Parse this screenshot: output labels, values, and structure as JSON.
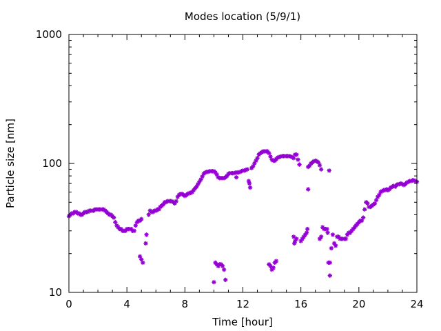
{
  "chart_data": {
    "type": "scatter",
    "title": "Modes location (5/9/1)",
    "xlabel": "Time [hour]",
    "ylabel": "Particle size [nm]",
    "xlim": [
      0,
      24
    ],
    "ylim": [
      10,
      1000
    ],
    "yscale": "log",
    "grid": false,
    "legend": "none",
    "marker": "asterisk",
    "xticks": [
      0,
      4,
      8,
      12,
      16,
      20,
      24
    ],
    "xtick_labels": [
      "0",
      "4",
      "8",
      "12",
      "16",
      "20",
      "24"
    ],
    "yticks": [
      10,
      100,
      1000
    ],
    "ytick_labels": [
      "10",
      "100",
      "1000"
    ],
    "series": [
      {
        "color": "#9400d3",
        "points": [
          [
            0.0,
            39
          ],
          [
            0.1,
            40
          ],
          [
            0.2,
            41
          ],
          [
            0.3,
            41
          ],
          [
            0.4,
            42
          ],
          [
            0.5,
            42
          ],
          [
            0.6,
            41
          ],
          [
            0.7,
            41
          ],
          [
            0.8,
            40
          ],
          [
            0.9,
            40
          ],
          [
            1.0,
            41
          ],
          [
            1.1,
            42
          ],
          [
            1.2,
            42
          ],
          [
            1.3,
            42
          ],
          [
            1.4,
            43
          ],
          [
            1.5,
            43
          ],
          [
            1.6,
            43
          ],
          [
            1.7,
            43
          ],
          [
            1.8,
            44
          ],
          [
            1.9,
            44
          ],
          [
            2.0,
            44
          ],
          [
            2.1,
            44
          ],
          [
            2.2,
            44
          ],
          [
            2.3,
            44
          ],
          [
            2.4,
            44
          ],
          [
            2.5,
            43
          ],
          [
            2.6,
            42
          ],
          [
            2.7,
            41
          ],
          [
            2.8,
            40
          ],
          [
            2.9,
            40
          ],
          [
            3.0,
            39
          ],
          [
            3.1,
            38
          ],
          [
            3.2,
            35
          ],
          [
            3.3,
            33
          ],
          [
            3.4,
            32
          ],
          [
            3.5,
            31
          ],
          [
            3.6,
            31
          ],
          [
            3.7,
            30
          ],
          [
            3.8,
            30
          ],
          [
            3.9,
            30
          ],
          [
            4.0,
            31
          ],
          [
            4.1,
            31
          ],
          [
            4.2,
            31
          ],
          [
            4.3,
            31
          ],
          [
            4.4,
            30
          ],
          [
            4.5,
            30
          ],
          [
            4.6,
            33
          ],
          [
            4.7,
            35
          ],
          [
            4.8,
            36
          ],
          [
            4.9,
            36
          ],
          [
            5.0,
            37
          ],
          [
            4.9,
            19
          ],
          [
            5.0,
            18
          ],
          [
            5.1,
            17
          ],
          [
            5.3,
            24
          ],
          [
            5.35,
            28
          ],
          [
            5.5,
            40
          ],
          [
            5.6,
            43
          ],
          [
            5.7,
            42
          ],
          [
            5.8,
            42
          ],
          [
            5.9,
            43
          ],
          [
            6.0,
            43
          ],
          [
            6.1,
            44
          ],
          [
            6.2,
            44
          ],
          [
            6.3,
            46
          ],
          [
            6.4,
            47
          ],
          [
            6.5,
            48
          ],
          [
            6.6,
            50
          ],
          [
            6.7,
            50
          ],
          [
            6.8,
            51
          ],
          [
            6.9,
            51
          ],
          [
            7.0,
            51
          ],
          [
            7.1,
            51
          ],
          [
            7.2,
            50
          ],
          [
            7.3,
            49
          ],
          [
            7.4,
            51
          ],
          [
            7.5,
            55
          ],
          [
            7.6,
            57
          ],
          [
            7.7,
            58
          ],
          [
            7.8,
            58
          ],
          [
            7.9,
            57
          ],
          [
            8.0,
            56
          ],
          [
            8.1,
            57
          ],
          [
            8.2,
            58
          ],
          [
            8.3,
            59
          ],
          [
            8.4,
            59
          ],
          [
            8.5,
            60
          ],
          [
            8.6,
            62
          ],
          [
            8.7,
            64
          ],
          [
            8.8,
            66
          ],
          [
            8.9,
            69
          ],
          [
            9.0,
            72
          ],
          [
            9.1,
            75
          ],
          [
            9.2,
            79
          ],
          [
            9.3,
            83
          ],
          [
            9.4,
            85
          ],
          [
            9.5,
            86
          ],
          [
            9.6,
            86
          ],
          [
            9.7,
            87
          ],
          [
            9.8,
            87
          ],
          [
            9.9,
            87
          ],
          [
            10.0,
            87
          ],
          [
            10.1,
            85
          ],
          [
            10.2,
            82
          ],
          [
            10.3,
            78
          ],
          [
            10.4,
            77
          ],
          [
            10.5,
            77
          ],
          [
            10.6,
            77
          ],
          [
            10.7,
            77
          ],
          [
            10.8,
            78
          ],
          [
            10.9,
            80
          ],
          [
            11.0,
            83
          ],
          [
            11.1,
            84
          ],
          [
            11.2,
            84
          ],
          [
            11.3,
            84
          ],
          [
            11.4,
            84
          ],
          [
            11.5,
            85
          ],
          [
            11.6,
            85
          ],
          [
            11.7,
            85
          ],
          [
            11.8,
            86
          ],
          [
            11.9,
            87
          ],
          [
            12.0,
            88
          ],
          [
            12.1,
            88
          ],
          [
            12.2,
            89
          ],
          [
            12.3,
            90
          ],
          [
            11.55,
            78
          ],
          [
            12.4,
            73
          ],
          [
            12.45,
            70
          ],
          [
            12.5,
            65
          ],
          [
            12.6,
            92
          ],
          [
            12.7,
            95
          ],
          [
            12.8,
            100
          ],
          [
            12.9,
            105
          ],
          [
            13.0,
            110
          ],
          [
            13.1,
            117
          ],
          [
            13.2,
            120
          ],
          [
            13.3,
            122
          ],
          [
            13.4,
            124
          ],
          [
            13.5,
            124
          ],
          [
            13.6,
            124
          ],
          [
            13.7,
            124
          ],
          [
            13.8,
            120
          ],
          [
            13.9,
            113
          ],
          [
            14.0,
            107
          ],
          [
            14.1,
            105
          ],
          [
            14.2,
            105
          ],
          [
            14.3,
            108
          ],
          [
            14.4,
            111
          ],
          [
            14.5,
            112
          ],
          [
            14.6,
            113
          ],
          [
            14.7,
            114
          ],
          [
            14.8,
            114
          ],
          [
            14.9,
            114
          ],
          [
            15.0,
            114
          ],
          [
            15.1,
            114
          ],
          [
            15.2,
            114
          ],
          [
            15.3,
            113
          ],
          [
            15.4,
            112
          ],
          [
            15.5,
            110
          ],
          [
            15.6,
            117
          ],
          [
            15.7,
            117
          ],
          [
            15.8,
            107
          ],
          [
            15.9,
            98
          ],
          [
            16.5,
            94
          ],
          [
            16.6,
            96
          ],
          [
            16.7,
            100
          ],
          [
            16.8,
            102
          ],
          [
            16.9,
            104
          ],
          [
            17.0,
            105
          ],
          [
            17.1,
            104
          ],
          [
            17.2,
            102
          ],
          [
            17.3,
            97
          ],
          [
            17.4,
            90
          ],
          [
            17.95,
            88
          ],
          [
            16.5,
            63
          ],
          [
            10.0,
            12
          ],
          [
            10.1,
            17
          ],
          [
            10.2,
            16.5
          ],
          [
            10.3,
            16
          ],
          [
            10.4,
            16.5
          ],
          [
            10.5,
            16.5
          ],
          [
            10.6,
            16
          ],
          [
            10.7,
            15
          ],
          [
            10.8,
            12.5
          ],
          [
            13.8,
            16.5
          ],
          [
            13.9,
            16
          ],
          [
            14.0,
            15
          ],
          [
            14.1,
            15.5
          ],
          [
            14.2,
            17
          ],
          [
            14.3,
            17.5
          ],
          [
            15.5,
            27
          ],
          [
            15.55,
            24
          ],
          [
            15.6,
            25
          ],
          [
            15.7,
            26
          ],
          [
            16.0,
            25
          ],
          [
            16.1,
            26
          ],
          [
            16.2,
            27
          ],
          [
            16.3,
            28
          ],
          [
            16.4,
            29
          ],
          [
            16.45,
            31
          ],
          [
            17.3,
            26
          ],
          [
            17.4,
            27
          ],
          [
            17.5,
            32
          ],
          [
            17.6,
            31
          ],
          [
            17.7,
            31
          ],
          [
            17.8,
            31
          ],
          [
            17.85,
            29
          ],
          [
            17.9,
            17
          ],
          [
            18.0,
            17
          ],
          [
            18.0,
            13.5
          ],
          [
            18.1,
            22
          ],
          [
            18.2,
            28
          ],
          [
            18.3,
            24
          ],
          [
            18.4,
            23
          ],
          [
            18.5,
            27
          ],
          [
            18.6,
            27
          ],
          [
            18.7,
            26
          ],
          [
            18.8,
            26
          ],
          [
            18.9,
            26
          ],
          [
            19.0,
            26
          ],
          [
            19.1,
            26
          ],
          [
            19.2,
            28
          ],
          [
            19.3,
            29
          ],
          [
            19.4,
            29
          ],
          [
            19.5,
            30
          ],
          [
            19.6,
            31
          ],
          [
            19.7,
            32
          ],
          [
            19.8,
            33
          ],
          [
            19.9,
            34
          ],
          [
            20.0,
            35
          ],
          [
            20.1,
            36
          ],
          [
            20.2,
            36
          ],
          [
            20.3,
            38
          ],
          [
            20.4,
            44
          ],
          [
            20.5,
            50
          ],
          [
            20.6,
            49
          ],
          [
            20.7,
            46
          ],
          [
            20.8,
            46
          ],
          [
            20.9,
            47
          ],
          [
            21.0,
            48
          ],
          [
            21.1,
            49
          ],
          [
            21.2,
            52
          ],
          [
            21.3,
            55
          ],
          [
            21.4,
            57
          ],
          [
            21.5,
            60
          ],
          [
            21.6,
            61
          ],
          [
            21.7,
            62
          ],
          [
            21.8,
            62
          ],
          [
            21.9,
            63
          ],
          [
            22.0,
            62
          ],
          [
            22.1,
            63
          ],
          [
            22.2,
            65
          ],
          [
            22.3,
            66
          ],
          [
            22.4,
            67
          ],
          [
            22.5,
            66
          ],
          [
            22.6,
            68
          ],
          [
            22.7,
            69
          ],
          [
            22.8,
            69
          ],
          [
            22.9,
            70
          ],
          [
            23.0,
            69
          ],
          [
            23.1,
            68
          ],
          [
            23.2,
            69
          ],
          [
            23.3,
            71
          ],
          [
            23.4,
            72
          ],
          [
            23.5,
            73
          ],
          [
            23.6,
            73
          ],
          [
            23.7,
            74
          ],
          [
            23.8,
            74
          ],
          [
            23.9,
            73
          ],
          [
            24.0,
            72
          ]
        ]
      }
    ]
  }
}
